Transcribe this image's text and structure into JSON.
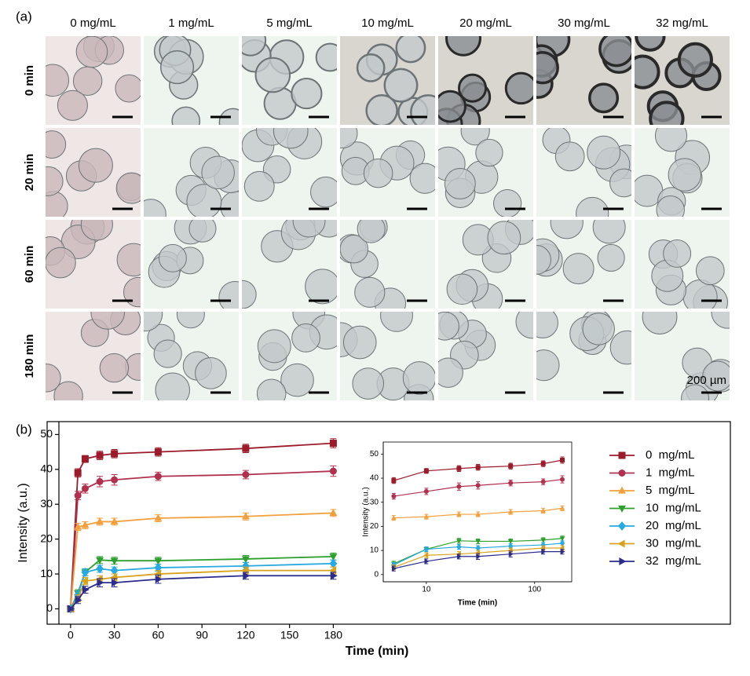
{
  "figure": {
    "panel_a": {
      "label": "(a)",
      "columns": [
        "0 mg/mL",
        "1 mg/mL",
        "5 mg/mL",
        "10 mg/mL",
        "20 mg/mL",
        "30 mg/mL",
        "32 mg/mL"
      ],
      "rows": [
        "0 min",
        "20 min",
        "60 min",
        "180 min"
      ],
      "scale_label": "200 µm"
    },
    "panel_b_label": "(b)"
  },
  "chart_data": [
    {
      "type": "line",
      "xlabel": "Time (min)",
      "ylabel": "Intensity (a.u.)",
      "x": [
        0,
        5,
        10,
        20,
        30,
        60,
        120,
        180
      ],
      "xlim": [
        -8,
        190
      ],
      "xticks": [
        0,
        30,
        60,
        90,
        120,
        150,
        180
      ],
      "ylim": [
        -4.4,
        53.7
      ],
      "yticks": [
        0,
        10,
        20,
        30,
        40,
        50
      ],
      "series": [
        {
          "name": "0  mg/mL",
          "color": "#9b1b2a",
          "marker": "square",
          "values": [
            0,
            39,
            43,
            44,
            44.5,
            45,
            46,
            47.5
          ],
          "errors": [
            0.5,
            1.2,
            1,
            1.2,
            1.2,
            1.2,
            1.2,
            1.3
          ]
        },
        {
          "name": "1  mg/mL",
          "color": "#b0304e",
          "marker": "circle",
          "values": [
            0,
            32.5,
            34.5,
            36.5,
            37,
            38,
            38.5,
            39.5
          ],
          "errors": [
            0.5,
            1.2,
            1.3,
            1.5,
            1.5,
            1.2,
            1.2,
            1.5
          ]
        },
        {
          "name": "5  mg/mL",
          "color": "#f2a03d",
          "marker": "triangle-up",
          "values": [
            0,
            23.5,
            24,
            25,
            25,
            26,
            26.5,
            27.5
          ],
          "errors": [
            0.5,
            1,
            1,
            1,
            1,
            1,
            1,
            1
          ]
        },
        {
          "name": "10  mg/mL",
          "color": "#2ca02c",
          "marker": "triangle-down",
          "values": [
            0,
            4.5,
            10.5,
            14,
            13.8,
            13.8,
            14.3,
            15
          ],
          "errors": [
            0.5,
            1,
            1,
            1,
            1,
            1,
            1,
            1
          ]
        },
        {
          "name": "20  mg/mL",
          "color": "#27a9e1",
          "marker": "diamond",
          "values": [
            0,
            4,
            10.5,
            11.5,
            11,
            11.8,
            12.3,
            13
          ],
          "errors": [
            0.5,
            1,
            1,
            1,
            1,
            1,
            1,
            1
          ]
        },
        {
          "name": "30  mg/mL",
          "color": "#d9a21b",
          "marker": "triangle-left",
          "values": [
            0,
            3,
            8,
            8.5,
            9,
            10,
            11,
            11
          ],
          "errors": [
            0.5,
            1,
            1,
            1,
            1,
            1,
            1,
            1
          ]
        },
        {
          "name": "32  mg/mL",
          "color": "#2b2b8c",
          "marker": "triangle-right",
          "values": [
            0,
            2.5,
            5.5,
            7.5,
            7.5,
            8.5,
            9.5,
            9.5
          ],
          "errors": [
            0.5,
            1,
            1,
            1.2,
            1.2,
            1.2,
            1,
            1
          ]
        }
      ]
    },
    {
      "type": "line",
      "log_x": true,
      "xlabel": "Time (min)",
      "ylabel": "Intensity (a.u.)",
      "x": [
        5,
        10,
        20,
        30,
        60,
        120,
        180
      ],
      "xlim": [
        4,
        220
      ],
      "xticks": [
        10,
        100
      ],
      "ylim": [
        -3,
        55
      ],
      "yticks": [
        0,
        10,
        20,
        30,
        40,
        50
      ],
      "series": [
        {
          "color": "#9b1b2a",
          "marker": "square",
          "values": [
            39,
            43,
            44,
            44.5,
            45,
            46,
            47.5
          ],
          "errors": [
            1.2,
            1,
            1.2,
            1.2,
            1.2,
            1.2,
            1.3
          ]
        },
        {
          "color": "#b0304e",
          "marker": "circle",
          "values": [
            32.5,
            34.5,
            36.5,
            37,
            38,
            38.5,
            39.5
          ],
          "errors": [
            1.2,
            1.3,
            1.5,
            1.5,
            1.2,
            1.2,
            1.5
          ]
        },
        {
          "color": "#f2a03d",
          "marker": "triangle-up",
          "values": [
            23.5,
            24,
            25,
            25,
            26,
            26.5,
            27.5
          ],
          "errors": [
            1,
            1,
            1,
            1,
            1,
            1,
            1
          ]
        },
        {
          "color": "#2ca02c",
          "marker": "triangle-down",
          "values": [
            4.5,
            10.5,
            14,
            13.8,
            13.8,
            14.3,
            15
          ],
          "errors": [
            1,
            1,
            1,
            1,
            1,
            1,
            1
          ]
        },
        {
          "color": "#27a9e1",
          "marker": "diamond",
          "values": [
            4,
            10.5,
            11.5,
            11,
            11.8,
            12.3,
            13
          ],
          "errors": [
            1,
            1,
            1,
            1,
            1,
            1,
            1
          ]
        },
        {
          "color": "#d9a21b",
          "marker": "triangle-left",
          "values": [
            3,
            8,
            8.5,
            9,
            10,
            11,
            11
          ],
          "errors": [
            1,
            1,
            1,
            1,
            1,
            1,
            1
          ]
        },
        {
          "color": "#2b2b8c",
          "marker": "triangle-right",
          "values": [
            2.5,
            5.5,
            7.5,
            7.5,
            8.5,
            9.5,
            9.5
          ],
          "errors": [
            1,
            1,
            1,
            1.2,
            1.2,
            1,
            1
          ]
        }
      ]
    }
  ]
}
